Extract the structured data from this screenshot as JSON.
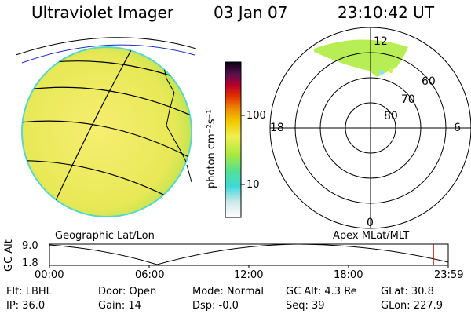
{
  "header": {
    "instrument": "Ultraviolet Imager",
    "date": "03 Jan 07",
    "time": "23:10:42  UT"
  },
  "colorbar": {
    "unit": "photon cm⁻²s⁻¹",
    "ticks": [
      "100",
      "10"
    ]
  },
  "polar_plot": {
    "mlt_labels": [
      "12",
      "18",
      "6",
      "0"
    ],
    "lat_labels": [
      "60",
      "70",
      "80"
    ]
  },
  "panel_labels": {
    "left": "Geographic Lat/Lon",
    "right": "Apex  MLat/MLT"
  },
  "altitude_strip": {
    "axis_title": "GC Alt",
    "y_ticks": [
      "9.0",
      "1.8"
    ],
    "x_ticks": [
      "00:00",
      "06:00",
      "12:00",
      "18:00",
      "23:59"
    ]
  },
  "status": {
    "flt": "Flt: LBHL",
    "ip": "IP: 36.0",
    "door": "Door: Open",
    "gain": "Gain: 14",
    "mode": "Mode: Normal",
    "dsp": "Dsp:  -0.0",
    "gcalt": "GC Alt: 4.3 Re",
    "seq": "Seq: 39",
    "glat": "GLat:  30.8",
    "glon": "GLon: 227.9"
  },
  "colors": {
    "globe_fill": "#eaea55",
    "aurora": "#b8ee55",
    "marker": "#cc0000"
  }
}
